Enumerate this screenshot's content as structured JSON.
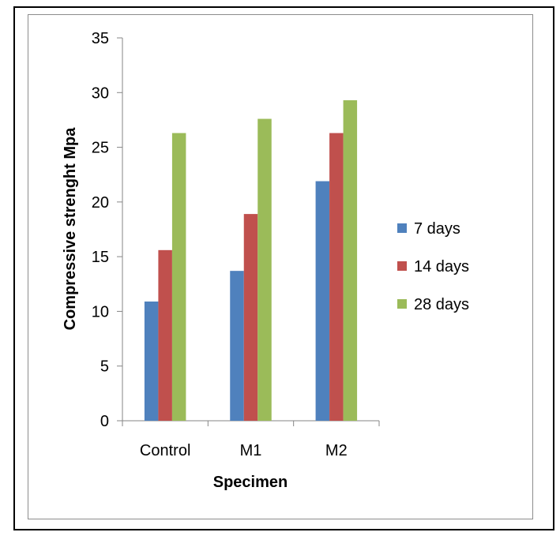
{
  "chart_data": {
    "type": "bar",
    "categories": [
      "Control",
      "M1",
      "M2"
    ],
    "series": [
      {
        "name": "7 days",
        "values": [
          10.9,
          13.7,
          21.9
        ],
        "color": "#4f81bd"
      },
      {
        "name": "14 days",
        "values": [
          15.6,
          18.9,
          26.3
        ],
        "color": "#c0504d"
      },
      {
        "name": "28 days",
        "values": [
          26.3,
          27.6,
          29.3
        ],
        "color": "#9bbb59"
      }
    ],
    "title": "",
    "xlabel": "Specimen",
    "ylabel": "Compressive strenght Mpa",
    "ylim": [
      0,
      35
    ],
    "yticks": [
      0,
      5,
      10,
      15,
      20,
      25,
      30,
      35
    ],
    "grid": false,
    "legend_position": "right"
  }
}
